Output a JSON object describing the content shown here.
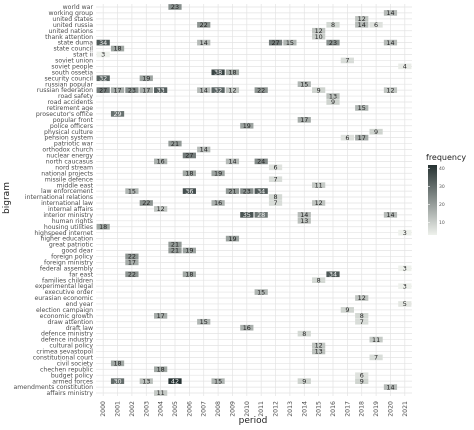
{
  "chart_data": {
    "type": "heatmap",
    "xlabel": "period",
    "ylabel": "bigram",
    "legend_title": "frequency",
    "legend_ticks": [
      10,
      20,
      30,
      40
    ],
    "legend_position": "right",
    "color_low": "#eef1ec",
    "color_high": "#263232",
    "periods": [
      "2000",
      "2001",
      "2002",
      "2003",
      "2004",
      "2005",
      "2006",
      "2007",
      "2008",
      "2009",
      "2010",
      "2011",
      "2012",
      "2013",
      "2014",
      "2015",
      "2016",
      "2017",
      "2018",
      "2019",
      "2020",
      "2021"
    ],
    "bigrams": [
      "world war",
      "working group",
      "united states",
      "united russia",
      "united nations",
      "thank attention",
      "state duma",
      "state council",
      "start ii",
      "soviet union",
      "soviet people",
      "south ossetia",
      "security council",
      "russian popular",
      "russian federation",
      "road safety",
      "road accidents",
      "retirement age",
      "prosecutor's office",
      "popular front",
      "police officers",
      "physical culture",
      "pension system",
      "patriotic war",
      "orthodox church",
      "nuclear energy",
      "north caucasus",
      "nord stream",
      "national projects",
      "missile defence",
      "middle east",
      "law enforcement",
      "international relations",
      "international law",
      "internal affairs",
      "interior ministry",
      "human rights",
      "housing utilities",
      "highspeed internet",
      "higher education",
      "great patriotic",
      "good dear",
      "foreign policy",
      "foreign ministry",
      "federal assembly",
      "far east",
      "families children",
      "experimental legal",
      "executive order",
      "eurasian economic",
      "end year",
      "election campaign",
      "economic growth",
      "draw attention",
      "draft law",
      "defence ministry",
      "defence industry",
      "cultural policy",
      "crimea sevastopol",
      "constitutional court",
      "civil society",
      "chechen republic",
      "budget policy",
      "armed forces",
      "amendments constitution",
      "affairs ministry"
    ],
    "cells": [
      {
        "bigram": "world war",
        "period": "2005",
        "value": 23
      },
      {
        "bigram": "working group",
        "period": "2020",
        "value": 14
      },
      {
        "bigram": "united states",
        "period": "2018",
        "value": 12
      },
      {
        "bigram": "united russia",
        "period": "2007",
        "value": 22
      },
      {
        "bigram": "united russia",
        "period": "2016",
        "value": 8
      },
      {
        "bigram": "united russia",
        "period": "2018",
        "value": 14
      },
      {
        "bigram": "united russia",
        "period": "2019",
        "value": 6
      },
      {
        "bigram": "united nations",
        "period": "2015",
        "value": 12
      },
      {
        "bigram": "thank attention",
        "period": "2015",
        "value": 10
      },
      {
        "bigram": "state duma",
        "period": "2000",
        "value": 34
      },
      {
        "bigram": "state duma",
        "period": "2007",
        "value": 14
      },
      {
        "bigram": "state duma",
        "period": "2012",
        "value": 27
      },
      {
        "bigram": "state duma",
        "period": "2013",
        "value": 15
      },
      {
        "bigram": "state duma",
        "period": "2016",
        "value": 23
      },
      {
        "bigram": "state duma",
        "period": "2020",
        "value": 14
      },
      {
        "bigram": "state council",
        "period": "2001",
        "value": 18
      },
      {
        "bigram": "start ii",
        "period": "2000",
        "value": 3
      },
      {
        "bigram": "soviet union",
        "period": "2017",
        "value": 7
      },
      {
        "bigram": "soviet people",
        "period": "2021",
        "value": 4
      },
      {
        "bigram": "south ossetia",
        "period": "2008",
        "value": 38
      },
      {
        "bigram": "south ossetia",
        "period": "2009",
        "value": 18
      },
      {
        "bigram": "security council",
        "period": "2000",
        "value": 32
      },
      {
        "bigram": "security council",
        "period": "2003",
        "value": 19
      },
      {
        "bigram": "russian popular",
        "period": "2014",
        "value": 15
      },
      {
        "bigram": "russian federation",
        "period": "2000",
        "value": 27
      },
      {
        "bigram": "russian federation",
        "period": "2001",
        "value": 17
      },
      {
        "bigram": "russian federation",
        "period": "2002",
        "value": 23
      },
      {
        "bigram": "russian federation",
        "period": "2003",
        "value": 17
      },
      {
        "bigram": "russian federation",
        "period": "2004",
        "value": 33
      },
      {
        "bigram": "russian federation",
        "period": "2007",
        "value": 14
      },
      {
        "bigram": "russian federation",
        "period": "2008",
        "value": 32
      },
      {
        "bigram": "russian federation",
        "period": "2009",
        "value": 12
      },
      {
        "bigram": "russian federation",
        "period": "2011",
        "value": 22
      },
      {
        "bigram": "russian federation",
        "period": "2015",
        "value": 9
      },
      {
        "bigram": "russian federation",
        "period": "2020",
        "value": 12
      },
      {
        "bigram": "road safety",
        "period": "2016",
        "value": 13
      },
      {
        "bigram": "road accidents",
        "period": "2016",
        "value": 9
      },
      {
        "bigram": "retirement age",
        "period": "2018",
        "value": 15
      },
      {
        "bigram": "prosecutor's office",
        "period": "2001",
        "value": 29
      },
      {
        "bigram": "popular front",
        "period": "2014",
        "value": 17
      },
      {
        "bigram": "police officers",
        "period": "2010",
        "value": 19
      },
      {
        "bigram": "physical culture",
        "period": "2019",
        "value": 9
      },
      {
        "bigram": "pension system",
        "period": "2017",
        "value": 6
      },
      {
        "bigram": "pension system",
        "period": "2018",
        "value": 17
      },
      {
        "bigram": "patriotic war",
        "period": "2005",
        "value": 21
      },
      {
        "bigram": "orthodox church",
        "period": "2007",
        "value": 14
      },
      {
        "bigram": "nuclear energy",
        "period": "2006",
        "value": 27
      },
      {
        "bigram": "north caucasus",
        "period": "2004",
        "value": 16
      },
      {
        "bigram": "north caucasus",
        "period": "2009",
        "value": 14
      },
      {
        "bigram": "north caucasus",
        "period": "2011",
        "value": 24
      },
      {
        "bigram": "nord stream",
        "period": "2012",
        "value": 6
      },
      {
        "bigram": "national projects",
        "period": "2006",
        "value": 18
      },
      {
        "bigram": "national projects",
        "period": "2008",
        "value": 19
      },
      {
        "bigram": "missile defence",
        "period": "2012",
        "value": 7
      },
      {
        "bigram": "middle east",
        "period": "2015",
        "value": 11
      },
      {
        "bigram": "law enforcement",
        "period": "2002",
        "value": 15
      },
      {
        "bigram": "law enforcement",
        "period": "2006",
        "value": 36
      },
      {
        "bigram": "law enforcement",
        "period": "2009",
        "value": 21
      },
      {
        "bigram": "law enforcement",
        "period": "2010",
        "value": 23
      },
      {
        "bigram": "law enforcement",
        "period": "2011",
        "value": 34
      },
      {
        "bigram": "international relations",
        "period": "2012",
        "value": 8
      },
      {
        "bigram": "international law",
        "period": "2003",
        "value": 22
      },
      {
        "bigram": "international law",
        "period": "2008",
        "value": 16
      },
      {
        "bigram": "international law",
        "period": "2012",
        "value": 7
      },
      {
        "bigram": "international law",
        "period": "2015",
        "value": 12
      },
      {
        "bigram": "internal affairs",
        "period": "2004",
        "value": 12
      },
      {
        "bigram": "interior ministry",
        "period": "2010",
        "value": 35
      },
      {
        "bigram": "interior ministry",
        "period": "2011",
        "value": 28
      },
      {
        "bigram": "interior ministry",
        "period": "2014",
        "value": 14
      },
      {
        "bigram": "interior ministry",
        "period": "2020",
        "value": 14
      },
      {
        "bigram": "human rights",
        "period": "2014",
        "value": 13
      },
      {
        "bigram": "housing utilities",
        "period": "2000",
        "value": 18
      },
      {
        "bigram": "highspeed internet",
        "period": "2021",
        "value": 3
      },
      {
        "bigram": "higher education",
        "period": "2009",
        "value": 19
      },
      {
        "bigram": "great patriotic",
        "period": "2005",
        "value": 21
      },
      {
        "bigram": "good dear",
        "period": "2005",
        "value": 21
      },
      {
        "bigram": "good dear",
        "period": "2006",
        "value": 19
      },
      {
        "bigram": "foreign policy",
        "period": "2002",
        "value": 22
      },
      {
        "bigram": "foreign ministry",
        "period": "2002",
        "value": 17
      },
      {
        "bigram": "federal assembly",
        "period": "2021",
        "value": 3
      },
      {
        "bigram": "far east",
        "period": "2002",
        "value": 22
      },
      {
        "bigram": "far east",
        "period": "2006",
        "value": 18
      },
      {
        "bigram": "far east",
        "period": "2016",
        "value": 34
      },
      {
        "bigram": "families children",
        "period": "2015",
        "value": 8
      },
      {
        "bigram": "experimental legal",
        "period": "2021",
        "value": 3
      },
      {
        "bigram": "executive order",
        "period": "2011",
        "value": 15
      },
      {
        "bigram": "eurasian economic",
        "period": "2018",
        "value": 12
      },
      {
        "bigram": "end year",
        "period": "2021",
        "value": 5
      },
      {
        "bigram": "election campaign",
        "period": "2017",
        "value": 9
      },
      {
        "bigram": "economic growth",
        "period": "2004",
        "value": 17
      },
      {
        "bigram": "economic growth",
        "period": "2018",
        "value": 8
      },
      {
        "bigram": "draw attention",
        "period": "2007",
        "value": 15
      },
      {
        "bigram": "draw attention",
        "period": "2018",
        "value": 7
      },
      {
        "bigram": "draft law",
        "period": "2010",
        "value": 16
      },
      {
        "bigram": "defence ministry",
        "period": "2014",
        "value": 8
      },
      {
        "bigram": "defence industry",
        "period": "2019",
        "value": 11
      },
      {
        "bigram": "cultural policy",
        "period": "2015",
        "value": 12
      },
      {
        "bigram": "crimea sevastopol",
        "period": "2015",
        "value": 13
      },
      {
        "bigram": "constitutional court",
        "period": "2019",
        "value": 7
      },
      {
        "bigram": "civil society",
        "period": "2001",
        "value": 18
      },
      {
        "bigram": "chechen republic",
        "period": "2004",
        "value": 18
      },
      {
        "bigram": "budget policy",
        "period": "2018",
        "value": 6
      },
      {
        "bigram": "armed forces",
        "period": "2001",
        "value": 30
      },
      {
        "bigram": "armed forces",
        "period": "2003",
        "value": 13
      },
      {
        "bigram": "armed forces",
        "period": "2005",
        "value": 42
      },
      {
        "bigram": "armed forces",
        "period": "2008",
        "value": 15
      },
      {
        "bigram": "armed forces",
        "period": "2014",
        "value": 9
      },
      {
        "bigram": "armed forces",
        "period": "2018",
        "value": 9
      },
      {
        "bigram": "amendments constitution",
        "period": "2020",
        "value": 14
      },
      {
        "bigram": "affairs ministry",
        "period": "2004",
        "value": 11
      }
    ]
  }
}
